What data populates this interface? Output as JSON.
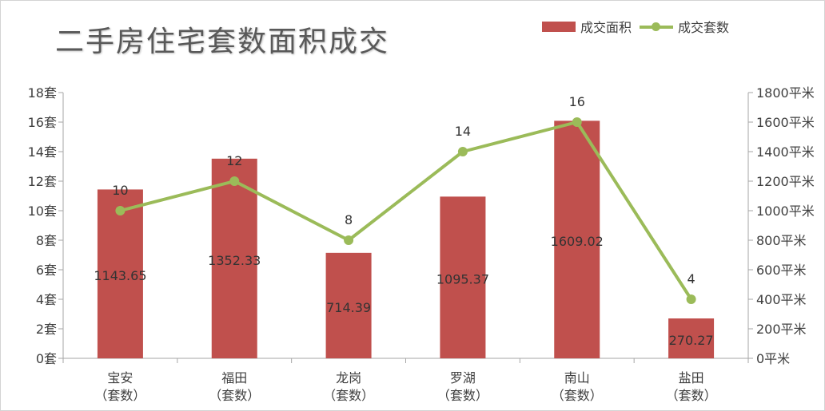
{
  "chart_data": {
    "type": "bar",
    "title": "二手房住宅套数面积成交",
    "categories": [
      "宝安\n（套数）",
      "福田\n（套数）",
      "龙岗\n（套数）",
      "罗湖\n（套数）",
      "南山\n（套数）",
      "盐田\n（套数）"
    ],
    "series": [
      {
        "name": "成交面积",
        "type": "bar",
        "axis": "right",
        "color": "#c0504d",
        "values": [
          1143.65,
          1352.33,
          714.39,
          1095.37,
          1609.02,
          270.27
        ],
        "labels": [
          "1143.65",
          "1352.33",
          "714.39",
          "1095.37",
          "1609.02",
          "270.27"
        ]
      },
      {
        "name": "成交套数",
        "type": "line",
        "axis": "left",
        "color": "#9bbb59",
        "values": [
          10,
          12,
          8,
          14,
          16,
          4
        ],
        "labels": [
          "10",
          "12",
          "8",
          "14",
          "16",
          "4"
        ]
      }
    ],
    "y_left": {
      "ylim": [
        0,
        18
      ],
      "ticks": [
        0,
        2,
        4,
        6,
        8,
        10,
        12,
        14,
        16,
        18
      ],
      "tick_labels": [
        "0套",
        "2套",
        "4套",
        "6套",
        "8套",
        "10套",
        "12套",
        "14套",
        "16套",
        "18套"
      ]
    },
    "y_right": {
      "ylim": [
        0,
        1800
      ],
      "ticks": [
        0,
        200,
        400,
        600,
        800,
        1000,
        1200,
        1400,
        1600,
        1800
      ],
      "tick_labels": [
        "0平米",
        "200平米",
        "400平米",
        "600平米",
        "800平米",
        "1000平米",
        "1200平米",
        "1400平米",
        "1600平米",
        "1800平米"
      ]
    },
    "grid": false,
    "legend_position": "top-right"
  }
}
